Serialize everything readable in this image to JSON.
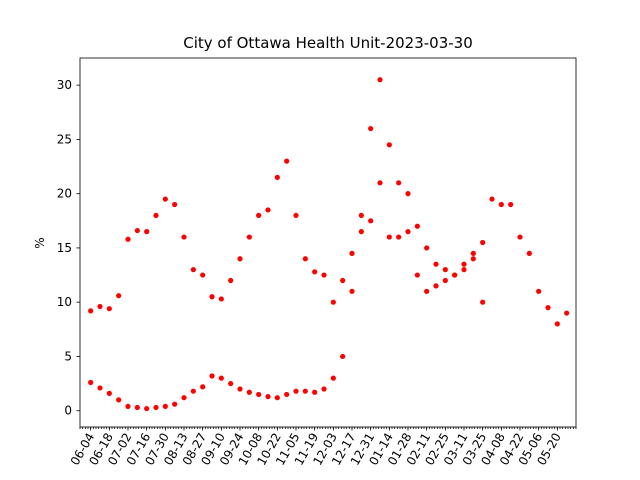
{
  "chart_data": {
    "type": "scatter",
    "title": "City of Ottawa Health Unit-2023-03-30",
    "xlabel": "",
    "ylabel": "%",
    "ylim": [
      -1.5,
      32.5
    ],
    "yticks": [
      0,
      5,
      10,
      15,
      20,
      25,
      30
    ],
    "xlim": [
      "2022-05-27",
      "2023-06-03"
    ],
    "xtick_labels": [
      "06-04",
      "06-18",
      "07-02",
      "07-16",
      "07-30",
      "08-13",
      "08-27",
      "09-10",
      "09-24",
      "10-08",
      "10-22",
      "11-05",
      "11-19",
      "12-03",
      "12-17",
      "12-31",
      "01-14",
      "01-28",
      "02-11",
      "02-25",
      "03-11",
      "03-25",
      "04-08",
      "04-22",
      "05-06",
      "05-20"
    ],
    "xtick_dates": [
      "2022-06-04",
      "2022-06-18",
      "2022-07-02",
      "2022-07-16",
      "2022-07-30",
      "2022-08-13",
      "2022-08-27",
      "2022-09-10",
      "2022-09-24",
      "2022-10-08",
      "2022-10-22",
      "2022-11-05",
      "2022-11-19",
      "2022-12-03",
      "2022-12-17",
      "2022-12-31",
      "2023-01-14",
      "2023-01-28",
      "2023-02-11",
      "2023-02-25",
      "2023-03-11",
      "2023-03-25",
      "2023-04-08",
      "2023-04-22",
      "2023-05-06",
      "2023-05-20"
    ],
    "grid": false,
    "marker_color": "#ff0000",
    "series": [
      {
        "name": "",
        "x": [
          "2022-06-04",
          "2022-06-11",
          "2022-06-18",
          "2022-06-25",
          "2022-07-02",
          "2022-07-09",
          "2022-07-16",
          "2022-07-23",
          "2022-07-30",
          "2022-08-06",
          "2022-08-13",
          "2022-08-20",
          "2022-08-27",
          "2022-09-03",
          "2022-09-10",
          "2022-09-17",
          "2022-09-24",
          "2022-10-01",
          "2022-10-08",
          "2022-10-15",
          "2022-10-22",
          "2022-10-29",
          "2022-11-05",
          "2022-11-12",
          "2022-11-19",
          "2022-11-26",
          "2022-12-03",
          "2022-12-10",
          "2022-12-17",
          "2022-12-24",
          "2022-12-31",
          "2023-01-07",
          "2023-01-14",
          "2023-01-21",
          "2023-01-28",
          "2023-02-04",
          "2023-02-11",
          "2023-02-18",
          "2023-02-25",
          "2023-03-04",
          "2023-03-11",
          "2023-03-18",
          "2023-03-25",
          "2023-04-01",
          "2023-04-08",
          "2023-04-15",
          "2023-04-22",
          "2023-04-29",
          "2023-05-06",
          "2023-05-13",
          "2023-05-20",
          "2023-05-27"
        ],
        "y": [
          9.2,
          9.6,
          9.4,
          10.6,
          15.8,
          16.6,
          16.5,
          18.0,
          19.5,
          19.0,
          16.0,
          13.0,
          12.5,
          10.5,
          10.3,
          12.0,
          14.0,
          16.0,
          18.0,
          18.5,
          21.5,
          23.0,
          18.0,
          14.0,
          12.8,
          12.5,
          10.0,
          12.0,
          14.5,
          16.5,
          17.5,
          21.0,
          16.0,
          16.0,
          16.5,
          12.5,
          11.0,
          11.5,
          12.0,
          12.5,
          13.5,
          14.5,
          15.5,
          19.5,
          19.0,
          19.0,
          16.0,
          14.5,
          11.0,
          9.5,
          8.0,
          9.0
        ]
      },
      {
        "name": "",
        "x": [
          "2022-06-04",
          "2022-06-11",
          "2022-06-18",
          "2022-06-25",
          "2022-07-02",
          "2022-07-09",
          "2022-07-16",
          "2022-07-23",
          "2022-07-30",
          "2022-08-06",
          "2022-08-13",
          "2022-08-20",
          "2022-08-27",
          "2022-09-03",
          "2022-09-10",
          "2022-09-17",
          "2022-09-24",
          "2022-10-01",
          "2022-10-08",
          "2022-10-15",
          "2022-10-22",
          "2022-10-29",
          "2022-11-05",
          "2022-11-12",
          "2022-11-19",
          "2022-11-26",
          "2022-12-03",
          "2022-12-10",
          "2022-12-17",
          "2022-12-24",
          "2022-12-31",
          "2023-01-07",
          "2023-01-14",
          "2023-01-21",
          "2023-01-28",
          "2023-02-04",
          "2023-02-11",
          "2023-02-18",
          "2023-02-25",
          "2023-03-04",
          "2023-03-11",
          "2023-03-18",
          "2023-03-25"
        ],
        "y": [
          2.6,
          2.1,
          1.6,
          1.0,
          0.4,
          0.3,
          0.2,
          0.3,
          0.4,
          0.6,
          1.2,
          1.8,
          2.2,
          3.2,
          3.0,
          2.5,
          2.0,
          1.7,
          1.5,
          1.3,
          1.2,
          1.5,
          1.8,
          1.8,
          1.7,
          2.0,
          3.0,
          5.0,
          11.0,
          18.0,
          26.0,
          30.5,
          24.5,
          21.0,
          20.0,
          17.0,
          15.0,
          13.5,
          13.0,
          12.5,
          13.0,
          14.0,
          10.0
        ]
      }
    ]
  }
}
